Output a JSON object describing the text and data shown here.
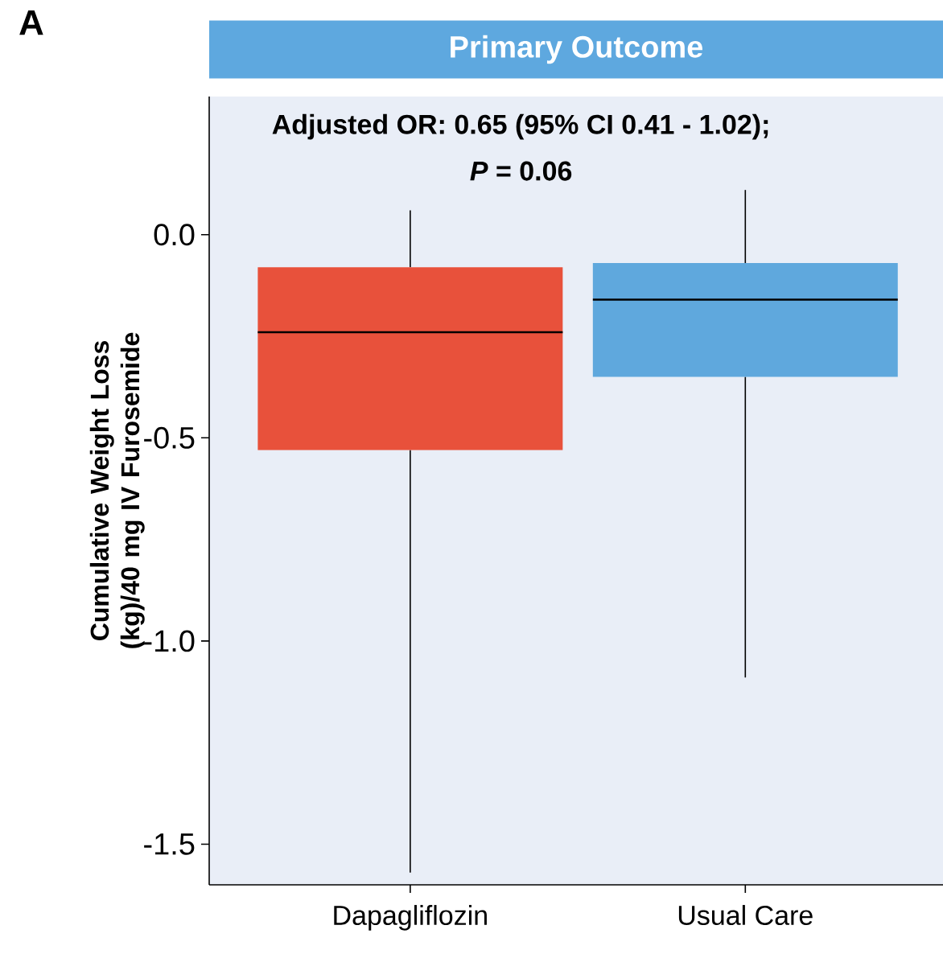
{
  "chart_data": {
    "type": "box",
    "title": "Primary Outcome",
    "ylabel": "Cumulative Weight Loss (kg)/40 mg IV Furosemide",
    "categories": [
      "Dapagliflozin",
      "Usual Care"
    ],
    "colors": [
      "#e8513b",
      "#5fa8dd"
    ],
    "boxes": [
      {
        "low": -1.57,
        "q1": -0.53,
        "median": -0.24,
        "q3": -0.08,
        "high": 0.06
      },
      {
        "low": -1.09,
        "q1": -0.35,
        "median": -0.16,
        "q3": -0.07,
        "high": 0.11
      }
    ],
    "ylim": [
      -1.6,
      0.34
    ],
    "yticks": [
      {
        "value": 0.0,
        "label": "0.0"
      },
      {
        "value": -0.5,
        "label": "-0.5"
      },
      {
        "value": -1.0,
        "label": "-1.0"
      },
      {
        "value": -1.5,
        "label": "-1.5"
      }
    ],
    "annotations": [
      "A",
      "Adjusted OR: 0.65 (95% CI 0.41 - 1.02);",
      "*P* = 0.06"
    ],
    "grid": false
  }
}
